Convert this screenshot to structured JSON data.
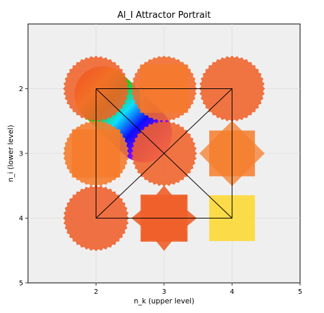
{
  "chart_data": {
    "type": "scatter",
    "title": "Al_I Attractor Portrait",
    "xlabel": "n_k (upper level)",
    "ylabel": "n_i (lower level)",
    "xlim": [
      1,
      5
    ],
    "ylim": [
      5,
      1
    ],
    "y_inverted": true,
    "xticks": [
      "2",
      "3",
      "4",
      "5"
    ],
    "yticks": [
      "2",
      "3",
      "4",
      "5"
    ],
    "grid": true,
    "background": "#efefef",
    "markers": [
      {
        "x": 2,
        "y": 2,
        "shape": "jagged-circle",
        "color": "#f0622a"
      },
      {
        "x": 3,
        "y": 2,
        "shape": "circle+square",
        "color": "#f26a2a"
      },
      {
        "x": 4,
        "y": 2,
        "shape": "jagged-circle",
        "color": "#f0622a"
      },
      {
        "x": 2,
        "y": 3,
        "shape": "circle+square",
        "color": "#f67a28"
      },
      {
        "x": 3,
        "y": 3,
        "shape": "jagged-circle",
        "color": "#f0622a"
      },
      {
        "x": 4,
        "y": 3,
        "shape": "diamond+square",
        "color": "#f57d2c"
      },
      {
        "x": 2,
        "y": 4,
        "shape": "jagged-circle",
        "color": "#ef5f2a"
      },
      {
        "x": 3,
        "y": 4,
        "shape": "8-point-star",
        "color": "#ee5e28"
      },
      {
        "x": 4,
        "y": 4,
        "shape": "square",
        "color": "#fdd835"
      }
    ],
    "rainbow_band": {
      "from": [
        2,
        2
      ],
      "to": [
        3,
        3
      ],
      "colors": [
        "#ff2a00",
        "#ffd000",
        "#22c000",
        "#00e0ff",
        "#0000ff",
        "#8a00ff",
        "#ff60ff"
      ]
    },
    "frame_lines": [
      {
        "points": [
          [
            2,
            2
          ],
          [
            4,
            2
          ],
          [
            4,
            4
          ],
          [
            2,
            4
          ],
          [
            2,
            2
          ]
        ]
      },
      {
        "points": [
          [
            2,
            2
          ],
          [
            4,
            4
          ]
        ]
      },
      {
        "points": [
          [
            4,
            2
          ],
          [
            2,
            4
          ]
        ]
      }
    ]
  }
}
